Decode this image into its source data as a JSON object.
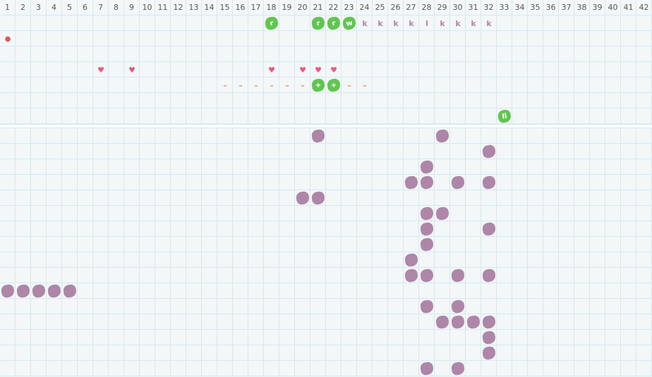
{
  "columns": [
    "1",
    "2",
    "3",
    "4",
    "5",
    "6",
    "7",
    "8",
    "9",
    "10",
    "11",
    "12",
    "13",
    "14",
    "15",
    "16",
    "17",
    "18",
    "19",
    "20",
    "21",
    "22",
    "23",
    "24",
    "25",
    "26",
    "27",
    "28",
    "29",
    "30",
    "31",
    "32",
    "33",
    "34",
    "35",
    "36",
    "37",
    "38",
    "39",
    "40",
    "41",
    "42"
  ],
  "colors": {
    "green": "#62c550",
    "purple": "#ae86a8",
    "heart": "#e65a80",
    "dash": "#f08a5d",
    "drop": "#e05a5a",
    "grid": "#d6e9f1"
  },
  "top_rows": 7,
  "bottom_rows": 16,
  "top_items": [
    {
      "row": 1,
      "col": 18,
      "kind": "green-blob",
      "glyph": "r"
    },
    {
      "row": 1,
      "col": 21,
      "kind": "green-blob",
      "glyph": "r"
    },
    {
      "row": 1,
      "col": 22,
      "kind": "green-blob",
      "glyph": "r"
    },
    {
      "row": 1,
      "col": 23,
      "kind": "green-blob",
      "glyph": "w"
    },
    {
      "row": 1,
      "col": 24,
      "kind": "purple-text",
      "glyph": "k"
    },
    {
      "row": 1,
      "col": 25,
      "kind": "purple-text",
      "glyph": "k"
    },
    {
      "row": 1,
      "col": 26,
      "kind": "purple-text",
      "glyph": "k"
    },
    {
      "row": 1,
      "col": 27,
      "kind": "purple-text",
      "glyph": "k"
    },
    {
      "row": 1,
      "col": 28,
      "kind": "purple-text",
      "glyph": "l"
    },
    {
      "row": 1,
      "col": 29,
      "kind": "purple-text",
      "glyph": "k"
    },
    {
      "row": 1,
      "col": 30,
      "kind": "purple-text",
      "glyph": "k"
    },
    {
      "row": 1,
      "col": 31,
      "kind": "purple-text",
      "glyph": "k"
    },
    {
      "row": 1,
      "col": 32,
      "kind": "purple-text",
      "glyph": "k"
    },
    {
      "row": 2,
      "col": 1,
      "kind": "drop",
      "glyph": "drop-icon"
    },
    {
      "row": 4,
      "col": 7,
      "kind": "heart",
      "glyph": "heart-icon"
    },
    {
      "row": 4,
      "col": 9,
      "kind": "heart",
      "glyph": "heart-icon"
    },
    {
      "row": 4,
      "col": 18,
      "kind": "heart",
      "glyph": "heart-icon"
    },
    {
      "row": 4,
      "col": 20,
      "kind": "heart",
      "glyph": "heart-icon"
    },
    {
      "row": 4,
      "col": 21,
      "kind": "heart",
      "glyph": "heart-icon"
    },
    {
      "row": 4,
      "col": 22,
      "kind": "heart",
      "glyph": "heart-icon"
    },
    {
      "row": 5,
      "col": 15,
      "kind": "dash",
      "glyph": "–"
    },
    {
      "row": 5,
      "col": 16,
      "kind": "dash",
      "glyph": "–"
    },
    {
      "row": 5,
      "col": 17,
      "kind": "dash",
      "glyph": "–"
    },
    {
      "row": 5,
      "col": 18,
      "kind": "dash",
      "glyph": "–"
    },
    {
      "row": 5,
      "col": 19,
      "kind": "dash",
      "glyph": "–"
    },
    {
      "row": 5,
      "col": 20,
      "kind": "dash",
      "glyph": "–"
    },
    {
      "row": 5,
      "col": 21,
      "kind": "green-blob",
      "glyph": "+"
    },
    {
      "row": 5,
      "col": 22,
      "kind": "green-blob",
      "glyph": "+"
    },
    {
      "row": 5,
      "col": 23,
      "kind": "dash",
      "glyph": "–"
    },
    {
      "row": 5,
      "col": 24,
      "kind": "dash",
      "glyph": "–"
    },
    {
      "row": 7,
      "col": 33,
      "kind": "green-blob",
      "glyph": "ll"
    }
  ],
  "bottom_blocks": [
    [
      1,
      21
    ],
    [
      1,
      29
    ],
    [
      2,
      32
    ],
    [
      3,
      28
    ],
    [
      4,
      27
    ],
    [
      4,
      28
    ],
    [
      4,
      30
    ],
    [
      4,
      32
    ],
    [
      5,
      20
    ],
    [
      5,
      21
    ],
    [
      6,
      28
    ],
    [
      6,
      29
    ],
    [
      7,
      28
    ],
    [
      7,
      32
    ],
    [
      8,
      28
    ],
    [
      9,
      27
    ],
    [
      10,
      27
    ],
    [
      10,
      28
    ],
    [
      10,
      30
    ],
    [
      10,
      32
    ],
    [
      11,
      1
    ],
    [
      11,
      2
    ],
    [
      11,
      3
    ],
    [
      11,
      4
    ],
    [
      11,
      5
    ],
    [
      12,
      28
    ],
    [
      12,
      30
    ],
    [
      13,
      29
    ],
    [
      13,
      30
    ],
    [
      13,
      31
    ],
    [
      13,
      32
    ],
    [
      14,
      32
    ],
    [
      15,
      32
    ],
    [
      16,
      28
    ],
    [
      16,
      30
    ]
  ]
}
